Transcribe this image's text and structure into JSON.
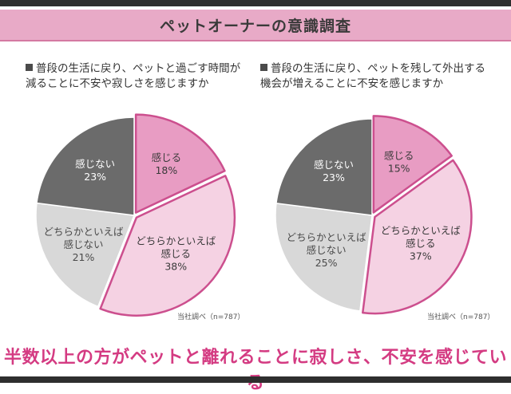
{
  "header": {
    "title": "ペットオーナーの意識調査"
  },
  "conclusion": "半数以上の方がペットと離れることに寂しさ、不安を感じている",
  "colors": {
    "header_band": "#e8aac7",
    "feel": "#e89cc3",
    "somewhat_feel": "#f5d2e3",
    "somewhat_not": "#d8d8d8",
    "not_feel": "#6b6b6b",
    "highlight_stroke": "#cc4f8e",
    "conclusion": "#d43b82"
  },
  "chart_data": [
    {
      "type": "pie",
      "title": "普段の生活に戻り、ペットと過ごす時間が減ることに不安や寂しさを感じますか",
      "title_lines": [
        "普段の生活に戻り、ペットと過ごす時間が",
        "減ることに不安や寂しさを感じますか"
      ],
      "source": "当社調べ（n=787）",
      "slices": [
        {
          "label": "感じる",
          "lines": [
            "感じる"
          ],
          "value": 18,
          "value_text": "18%"
        },
        {
          "label": "どちらかといえば感じる",
          "lines": [
            "どちらかといえば",
            "感じる"
          ],
          "value": 38,
          "value_text": "38%"
        },
        {
          "label": "どちらかといえば感じない",
          "lines": [
            "どちらかといえば",
            "感じない"
          ],
          "value": 21,
          "value_text": "21%"
        },
        {
          "label": "感じない",
          "lines": [
            "感じない"
          ],
          "value": 23,
          "value_text": "23%"
        }
      ]
    },
    {
      "type": "pie",
      "title": "普段の生活に戻り、ペットを残して外出する機会が増えることに不安を感じますか",
      "title_lines": [
        "普段の生活に戻り、ペットを残して外出する",
        "機会が増えることに不安を感じますか"
      ],
      "source": "当社調べ（n=787）",
      "slices": [
        {
          "label": "感じる",
          "lines": [
            "感じる"
          ],
          "value": 15,
          "value_text": "15%"
        },
        {
          "label": "どちらかといえば感じる",
          "lines": [
            "どちらかといえば",
            "感じる"
          ],
          "value": 37,
          "value_text": "37%"
        },
        {
          "label": "どちらかといえば感じない",
          "lines": [
            "どちらかといえば",
            "感じない"
          ],
          "value": 25,
          "value_text": "25%"
        },
        {
          "label": "感じない",
          "lines": [
            "感じない"
          ],
          "value": 23,
          "value_text": "23%"
        }
      ]
    }
  ]
}
